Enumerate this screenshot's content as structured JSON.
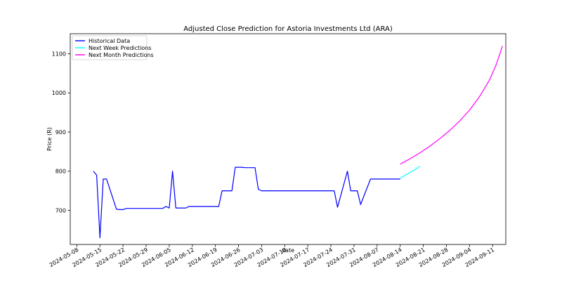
{
  "chart_data": {
    "type": "line",
    "title": "Adjusted Close Prediction for Astoria Investments Ltd (ARA)",
    "xlabel": "date",
    "ylabel": "Price (R)",
    "x_axis_type": "date",
    "xlim": [
      "2024-05-06",
      "2024-09-15"
    ],
    "ylim": [
      613,
      1151
    ],
    "grid": false,
    "legend_position": "top-left",
    "x_ticks": [
      "2024-05-08",
      "2024-05-15",
      "2024-05-22",
      "2024-05-29",
      "2024-06-05",
      "2024-06-12",
      "2024-06-19",
      "2024-06-26",
      "2024-07-03",
      "2024-07-10",
      "2024-07-17",
      "2024-07-24",
      "2024-07-31",
      "2024-08-07",
      "2024-08-14",
      "2024-08-21",
      "2024-08-28",
      "2024-09-04",
      "2024-09-11"
    ],
    "y_ticks": [
      700,
      800,
      900,
      1000,
      1100
    ],
    "series": [
      {
        "name": "Historical Data",
        "color": "#0000ff",
        "points": [
          [
            "2024-05-13",
            800
          ],
          [
            "2024-05-14",
            790
          ],
          [
            "2024-05-15",
            630
          ],
          [
            "2024-05-16",
            780
          ],
          [
            "2024-05-17",
            780
          ],
          [
            "2024-05-20",
            703
          ],
          [
            "2024-05-21",
            702
          ],
          [
            "2024-05-22",
            702
          ],
          [
            "2024-05-23",
            705
          ],
          [
            "2024-06-03",
            705
          ],
          [
            "2024-06-04",
            710
          ],
          [
            "2024-06-05",
            706
          ],
          [
            "2024-06-06",
            800
          ],
          [
            "2024-06-07",
            706
          ],
          [
            "2024-06-10",
            706
          ],
          [
            "2024-06-11",
            710
          ],
          [
            "2024-06-20",
            710
          ],
          [
            "2024-06-21",
            750
          ],
          [
            "2024-06-24",
            750
          ],
          [
            "2024-06-25",
            810
          ],
          [
            "2024-06-27",
            810
          ],
          [
            "2024-06-28",
            809
          ],
          [
            "2024-07-01",
            809
          ],
          [
            "2024-07-02",
            754
          ],
          [
            "2024-07-03",
            750
          ],
          [
            "2024-07-25",
            750
          ],
          [
            "2024-07-26",
            708
          ],
          [
            "2024-07-29",
            800
          ],
          [
            "2024-07-30",
            750
          ],
          [
            "2024-08-01",
            750
          ],
          [
            "2024-08-02",
            715
          ],
          [
            "2024-08-05",
            780
          ],
          [
            "2024-08-14",
            780
          ]
        ]
      },
      {
        "name": "Next Week Predictions",
        "color": "#00ffff",
        "points": [
          [
            "2024-08-14",
            782
          ],
          [
            "2024-08-15",
            787
          ],
          [
            "2024-08-16",
            792
          ],
          [
            "2024-08-17",
            797
          ],
          [
            "2024-08-18",
            802
          ],
          [
            "2024-08-19",
            807
          ],
          [
            "2024-08-20",
            813
          ]
        ]
      },
      {
        "name": "Next Month Predictions",
        "color": "#ff00ff",
        "points": [
          [
            "2024-08-14",
            818
          ],
          [
            "2024-08-17",
            832
          ],
          [
            "2024-08-20",
            847
          ],
          [
            "2024-08-23",
            864
          ],
          [
            "2024-08-26",
            883
          ],
          [
            "2024-08-29",
            904
          ],
          [
            "2024-09-01",
            928
          ],
          [
            "2024-09-04",
            956
          ],
          [
            "2024-09-07",
            990
          ],
          [
            "2024-09-10",
            1032
          ],
          [
            "2024-09-12",
            1070
          ],
          [
            "2024-09-14",
            1120
          ]
        ]
      }
    ]
  }
}
